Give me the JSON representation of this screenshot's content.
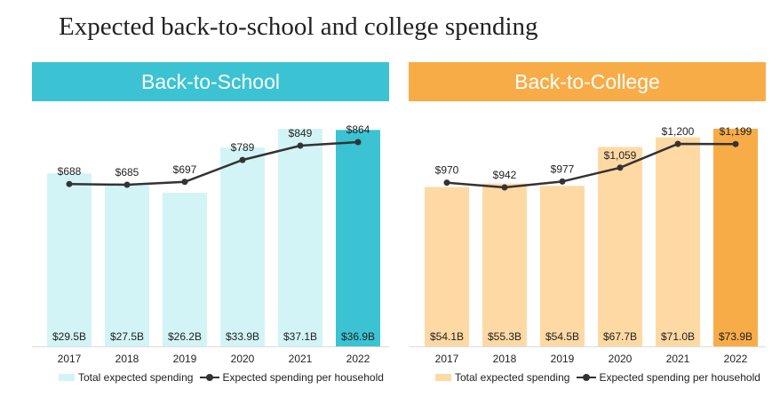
{
  "title": "Expected back-to-school and college spending",
  "colors": {
    "school_light": "#d3f4f6",
    "school_dark": "#3bc3d3",
    "college_light": "#ffd9a4",
    "college_dark": "#f8ac48",
    "line": "#333333"
  },
  "chart_data": [
    {
      "type": "bar",
      "title": "Back-to-School",
      "categories": [
        "2017",
        "2018",
        "2019",
        "2020",
        "2021",
        "2022"
      ],
      "series": [
        {
          "name": "Total expected spending",
          "type": "bar",
          "values": [
            29.5,
            27.5,
            26.2,
            33.9,
            37.1,
            36.9
          ],
          "labels": [
            "$29.5B",
            "$27.5B",
            "$26.2B",
            "$33.9B",
            "$37.1B",
            "$36.9B"
          ]
        },
        {
          "name": "Expected spending per household",
          "type": "line",
          "values": [
            688,
            685,
            697,
            789,
            849,
            864
          ],
          "labels": [
            "$688",
            "$685",
            "$697",
            "$789",
            "$849",
            "$864"
          ]
        }
      ]
    },
    {
      "type": "bar",
      "title": "Back-to-College",
      "categories": [
        "2017",
        "2018",
        "2019",
        "2020",
        "2021",
        "2022"
      ],
      "series": [
        {
          "name": "Total expected spending",
          "type": "bar",
          "values": [
            54.1,
            55.3,
            54.5,
            67.7,
            71.0,
            73.9
          ],
          "labels": [
            "$54.1B",
            "$55.3B",
            "$54.5B",
            "$67.7B",
            "$71.0B",
            "$73.9B"
          ]
        },
        {
          "name": "Expected spending per household",
          "type": "line",
          "values": [
            970,
            942,
            977,
            1059,
            1200,
            1199
          ],
          "labels": [
            "$970",
            "$942",
            "$977",
            "$1,059",
            "$1,200",
            "$1,199"
          ]
        }
      ]
    }
  ]
}
